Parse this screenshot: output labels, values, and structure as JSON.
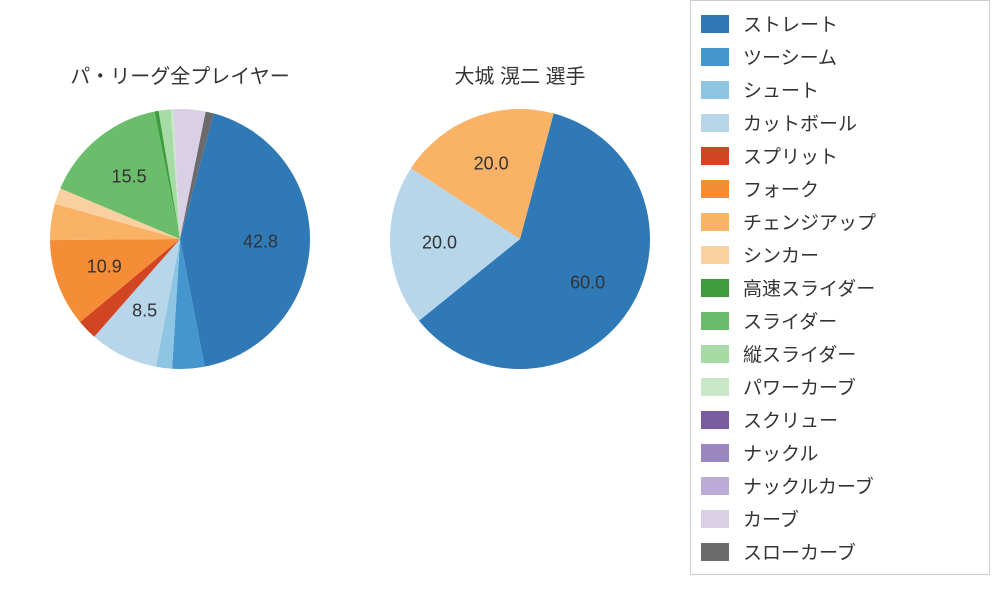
{
  "chart_left": {
    "title": "パ・リーグ全プレイヤー",
    "type": "pie",
    "start_angle_deg": 75,
    "direction": "clockwise",
    "slices": [
      {
        "label": "ストレート",
        "value": 42.8,
        "color": "#2f79b6",
        "show_label": true
      },
      {
        "label": "ツーシーム",
        "value": 4.0,
        "color": "#4596cf",
        "show_label": false
      },
      {
        "label": "シュート",
        "value": 2.0,
        "color": "#8ec5e2",
        "show_label": false
      },
      {
        "label": "カットボール",
        "value": 8.5,
        "color": "#b7d6ea",
        "show_label": true
      },
      {
        "label": "スプリット",
        "value": 2.5,
        "color": "#d24522",
        "show_label": false
      },
      {
        "label": "フォーク",
        "value": 10.9,
        "color": "#f58d37",
        "show_label": true
      },
      {
        "label": "チェンジアップ",
        "value": 4.5,
        "color": "#fab267",
        "show_label": false
      },
      {
        "label": "シンカー",
        "value": 2.0,
        "color": "#fbd0a1",
        "show_label": false
      },
      {
        "label": "スライダー",
        "value": 15.5,
        "color": "#6bbd6b",
        "show_label": true
      },
      {
        "label": "高速スライダー",
        "value": 0.5,
        "color": "#3d9d3d",
        "show_label": false
      },
      {
        "label": "縦スライダー",
        "value": 1.5,
        "color": "#a6dba6",
        "show_label": false
      },
      {
        "label": "パワーカーブ",
        "value": 0.3,
        "color": "#c8e8c8",
        "show_label": false
      },
      {
        "label": "カーブ",
        "value": 4.0,
        "color": "#dad0e6",
        "show_label": false
      },
      {
        "label": "スローカーブ",
        "value": 1.0,
        "color": "#6b6b6b",
        "show_label": false
      }
    ],
    "label_fontsize": 18,
    "title_fontsize": 20
  },
  "chart_right": {
    "title": "大城 滉二 選手",
    "type": "pie",
    "start_angle_deg": 75,
    "direction": "clockwise",
    "slices": [
      {
        "label": "ストレート",
        "value": 60.0,
        "color": "#2f79b6",
        "show_label": true
      },
      {
        "label": "カットボール",
        "value": 20.0,
        "color": "#b7d6ea",
        "show_label": true
      },
      {
        "label": "チェンジアップ",
        "value": 20.0,
        "color": "#fab267",
        "show_label": true
      }
    ],
    "label_fontsize": 18,
    "title_fontsize": 20
  },
  "legend": {
    "border_color": "#cccccc",
    "background_color": "#ffffff",
    "items": [
      {
        "label": "ストレート",
        "color": "#2f79b6"
      },
      {
        "label": "ツーシーム",
        "color": "#4596cf"
      },
      {
        "label": "シュート",
        "color": "#8ec5e2"
      },
      {
        "label": "カットボール",
        "color": "#b7d6ea"
      },
      {
        "label": "スプリット",
        "color": "#d24522"
      },
      {
        "label": "フォーク",
        "color": "#f58d37"
      },
      {
        "label": "チェンジアップ",
        "color": "#fab267"
      },
      {
        "label": "シンカー",
        "color": "#fbd0a1"
      },
      {
        "label": "高速スライダー",
        "color": "#3d9d3d"
      },
      {
        "label": "スライダー",
        "color": "#6bbd6b"
      },
      {
        "label": "縦スライダー",
        "color": "#a6dba6"
      },
      {
        "label": "パワーカーブ",
        "color": "#c8e8c8"
      },
      {
        "label": "スクリュー",
        "color": "#7a5ca0"
      },
      {
        "label": "ナックル",
        "color": "#9b86c0"
      },
      {
        "label": "ナックルカーブ",
        "color": "#bbabd6"
      },
      {
        "label": "カーブ",
        "color": "#dad0e6"
      },
      {
        "label": "スローカーブ",
        "color": "#6b6b6b"
      }
    ],
    "font_size": 19
  },
  "background_color": "#ffffff"
}
